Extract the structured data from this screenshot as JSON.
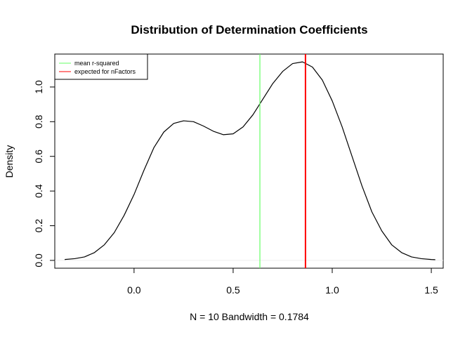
{
  "chart_data": {
    "type": "line",
    "title": "Distribution of Determination Coefficients",
    "xlabel": "N = 10   Bandwidth = 0.1784",
    "ylabel": "Density",
    "xlim": [
      -0.4,
      1.56
    ],
    "ylim": [
      -0.045,
      1.19
    ],
    "x_ticks": [
      0.0,
      0.5,
      1.0,
      1.5
    ],
    "x_tick_labels": [
      "0.0",
      "0.5",
      "1.0",
      "1.5"
    ],
    "y_ticks": [
      0.0,
      0.2,
      0.4,
      0.6,
      0.8,
      1.0
    ],
    "y_tick_labels": [
      "0.0",
      "0.2",
      "0.4",
      "0.6",
      "0.8",
      "1.0"
    ],
    "grid": false,
    "legend_position": "top-left",
    "series": [
      {
        "name": "density",
        "color": "#000000",
        "x": [
          -0.35,
          -0.3,
          -0.25,
          -0.2,
          -0.15,
          -0.1,
          -0.05,
          0.0,
          0.05,
          0.1,
          0.15,
          0.2,
          0.25,
          0.3,
          0.35,
          0.4,
          0.45,
          0.5,
          0.55,
          0.6,
          0.65,
          0.7,
          0.75,
          0.8,
          0.85,
          0.9,
          0.95,
          1.0,
          1.05,
          1.1,
          1.15,
          1.2,
          1.25,
          1.3,
          1.35,
          1.4,
          1.45,
          1.5,
          1.52
        ],
        "y": [
          0.005,
          0.01,
          0.02,
          0.045,
          0.09,
          0.16,
          0.26,
          0.38,
          0.52,
          0.65,
          0.74,
          0.79,
          0.805,
          0.8,
          0.775,
          0.745,
          0.725,
          0.73,
          0.77,
          0.84,
          0.93,
          1.02,
          1.09,
          1.135,
          1.145,
          1.115,
          1.04,
          0.92,
          0.77,
          0.6,
          0.43,
          0.28,
          0.17,
          0.09,
          0.045,
          0.02,
          0.01,
          0.005,
          0.004
        ]
      }
    ],
    "vlines": [
      {
        "label": "mean r-squared",
        "x": 0.635,
        "color": "#66ff66"
      },
      {
        "label": "expected for nFactors",
        "x": 0.865,
        "color": "#ff0000"
      }
    ]
  }
}
